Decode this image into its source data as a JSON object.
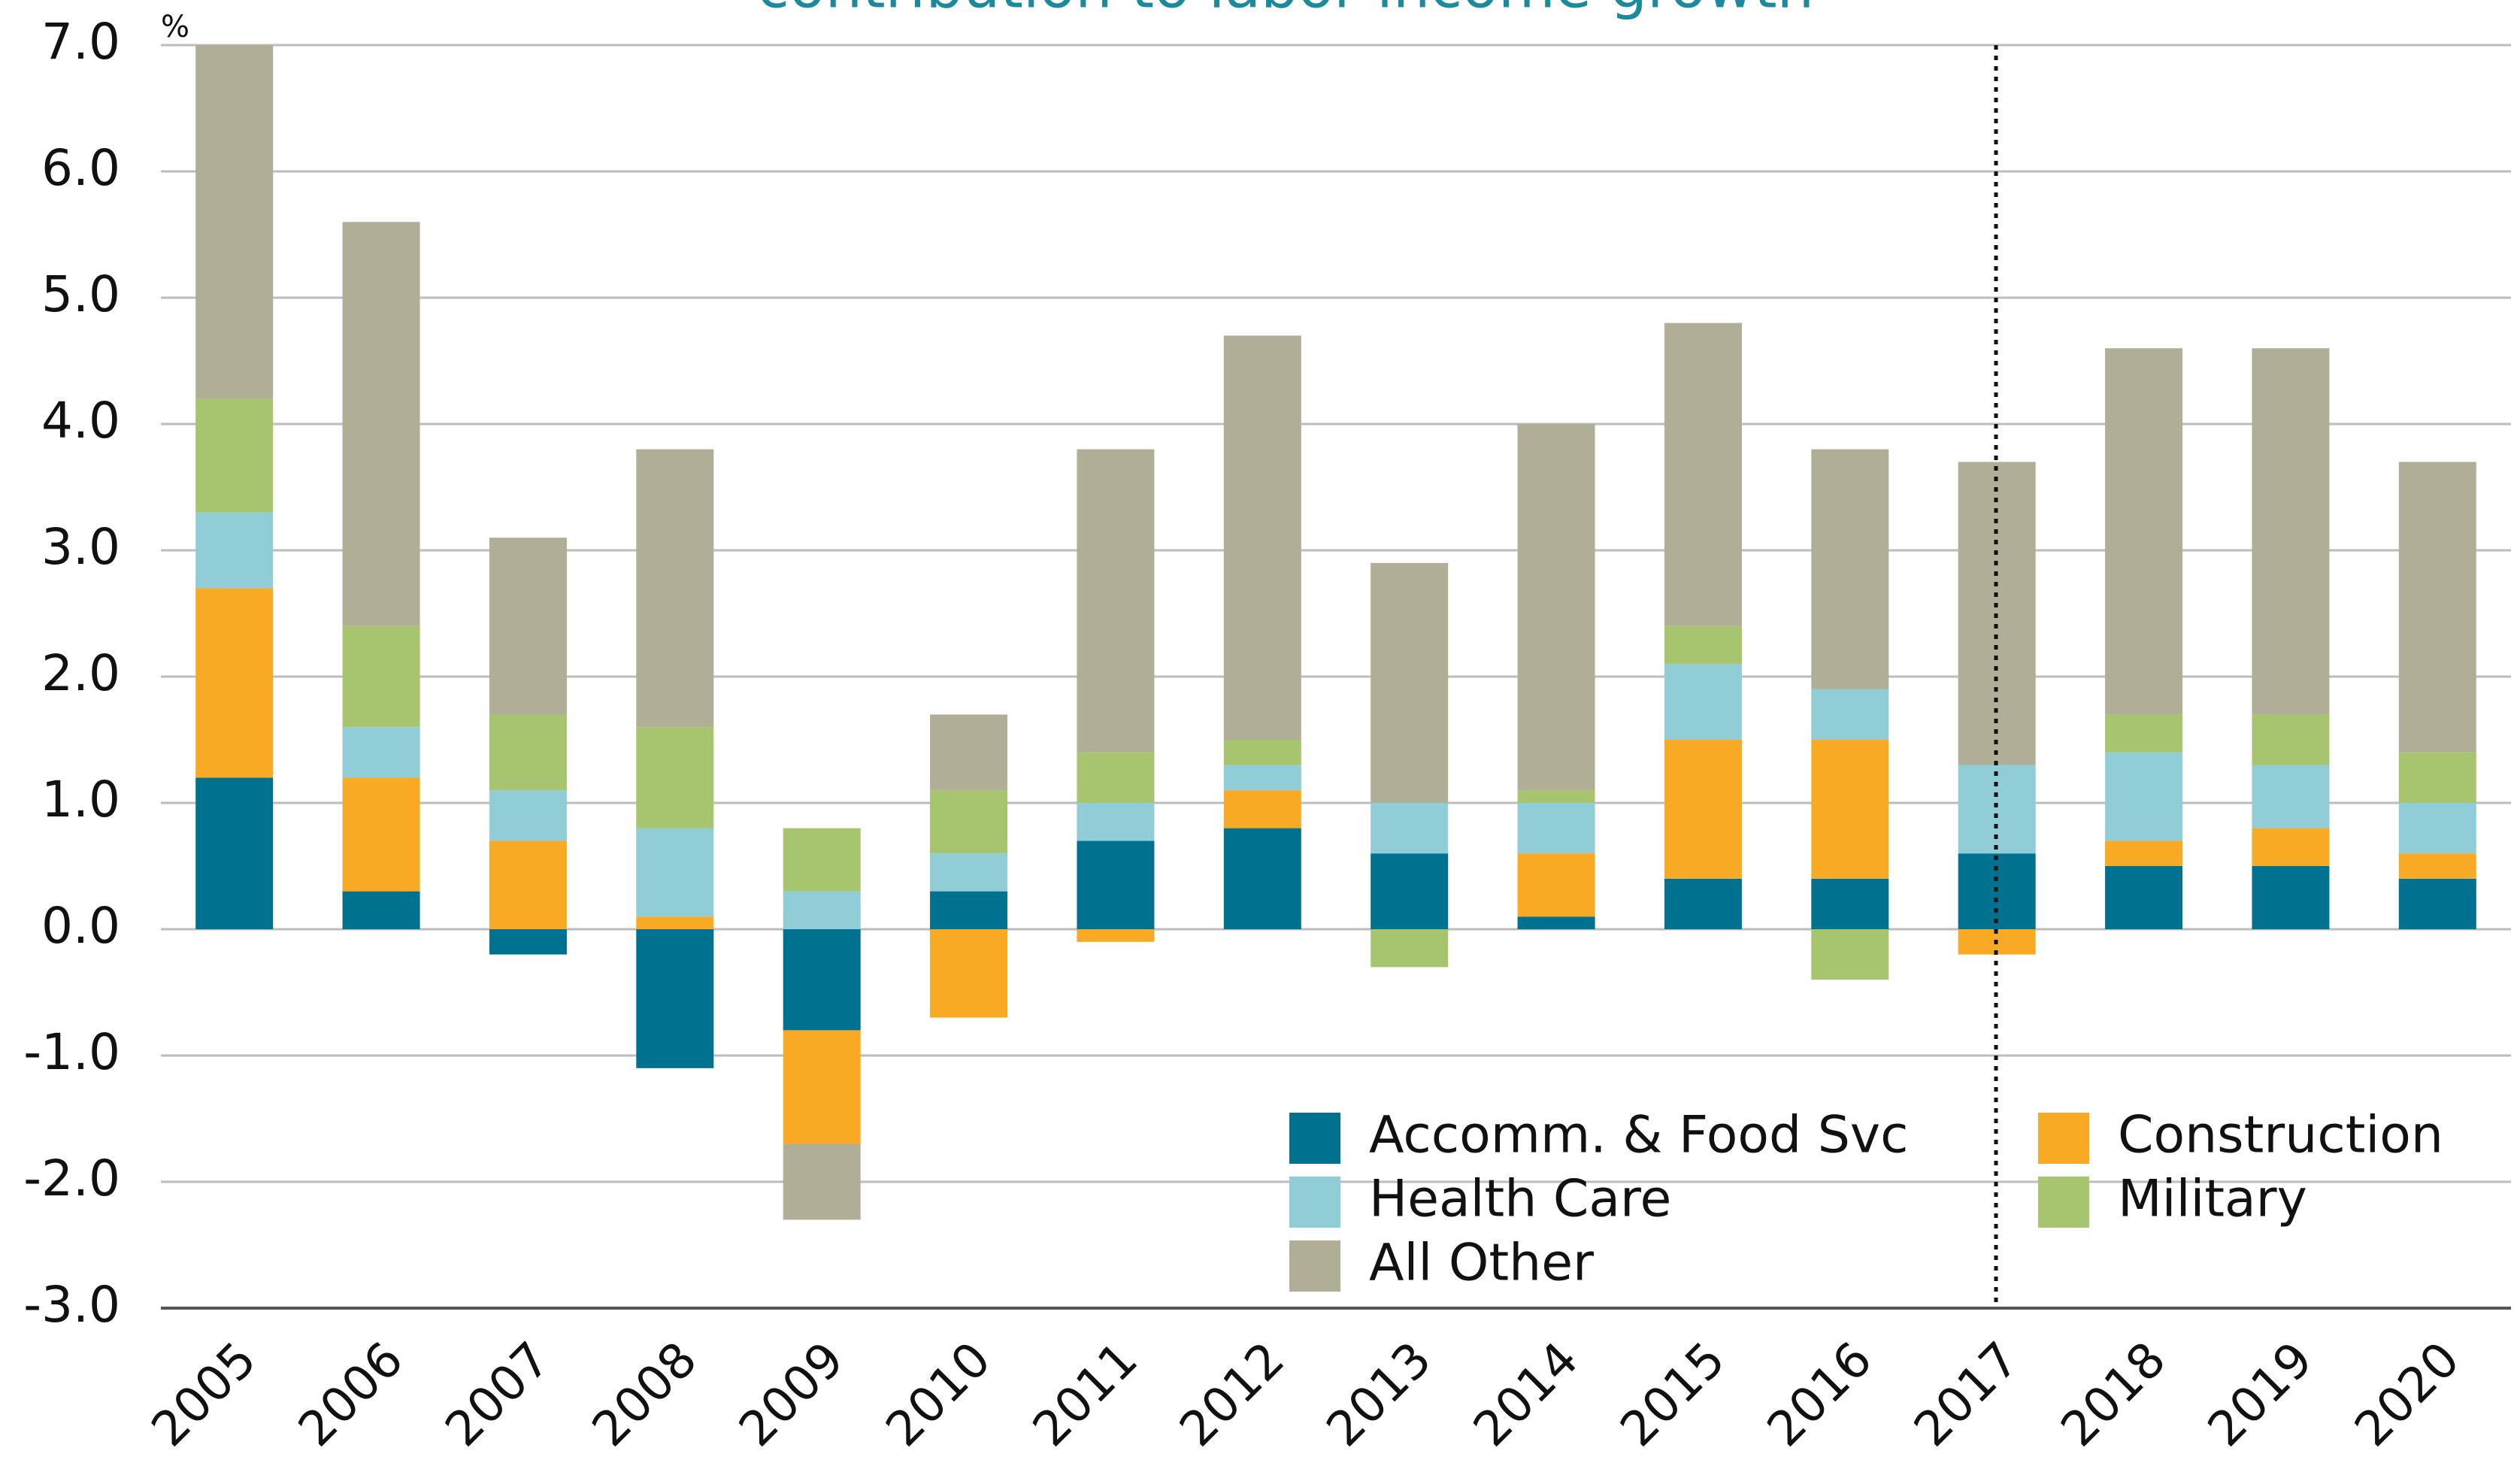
{
  "chart_data": {
    "type": "stacked_bar",
    "title": "contribution to labor income growth",
    "y_unit": "%",
    "categories": [
      "2005",
      "2006",
      "2007",
      "2008",
      "2009",
      "2010",
      "2011",
      "2012",
      "2013",
      "2014",
      "2015",
      "2016",
      "2017",
      "2018",
      "2019",
      "2020"
    ],
    "series": [
      {
        "name": "Accomm. & Food Svc",
        "color": "#00718f",
        "values": [
          1.2,
          0.3,
          -0.2,
          -1.1,
          -0.8,
          0.3,
          0.7,
          0.8,
          0.6,
          0.1,
          0.4,
          0.4,
          0.6,
          0.5,
          0.5,
          0.4
        ]
      },
      {
        "name": "Construction",
        "color": "#f8aa25",
        "values": [
          1.5,
          0.9,
          0.7,
          0.1,
          -0.9,
          -0.7,
          -0.1,
          0.3,
          0,
          0.5,
          1.1,
          1.1,
          -0.2,
          0.2,
          0.3,
          0.2
        ]
      },
      {
        "name": "Health Care",
        "color": "#90cdd6",
        "values": [
          0.6,
          0.4,
          0.4,
          0.7,
          0.3,
          0.3,
          0.3,
          0.2,
          0.4,
          0.4,
          0.6,
          0.4,
          0.7,
          0.7,
          0.5,
          0.4
        ]
      },
      {
        "name": "Military",
        "color": "#a7c46e",
        "values": [
          0.9,
          0.8,
          0.6,
          0.8,
          0.5,
          0.5,
          0.4,
          0.2,
          -0.3,
          0.1,
          0.3,
          -0.4,
          0,
          0.3,
          0.4,
          0.4
        ]
      },
      {
        "name": "All Other",
        "color": "#b0ae97",
        "values": [
          2.8,
          3.2,
          1.4,
          2.2,
          -0.6,
          0.6,
          2.4,
          3.2,
          1.9,
          2.9,
          2.4,
          1.9,
          2.4,
          2.9,
          2.9,
          2.3
        ]
      }
    ],
    "ylim": [
      -3,
      7
    ],
    "yticks": [
      {
        "value": -3,
        "label": "-3.0"
      },
      {
        "value": -2,
        "label": "-2.0"
      },
      {
        "value": -1,
        "label": "-1.0"
      },
      {
        "value": 0,
        "label": "0.0"
      },
      {
        "value": 1,
        "label": "1.0"
      },
      {
        "value": 2,
        "label": "2.0"
      },
      {
        "value": 3,
        "label": "3.0"
      },
      {
        "value": 4,
        "label": "4.0"
      },
      {
        "value": 5,
        "label": "5.0"
      },
      {
        "value": 6,
        "label": "6.0"
      },
      {
        "value": 7,
        "label": "7.0"
      }
    ],
    "grid": true
  }
}
